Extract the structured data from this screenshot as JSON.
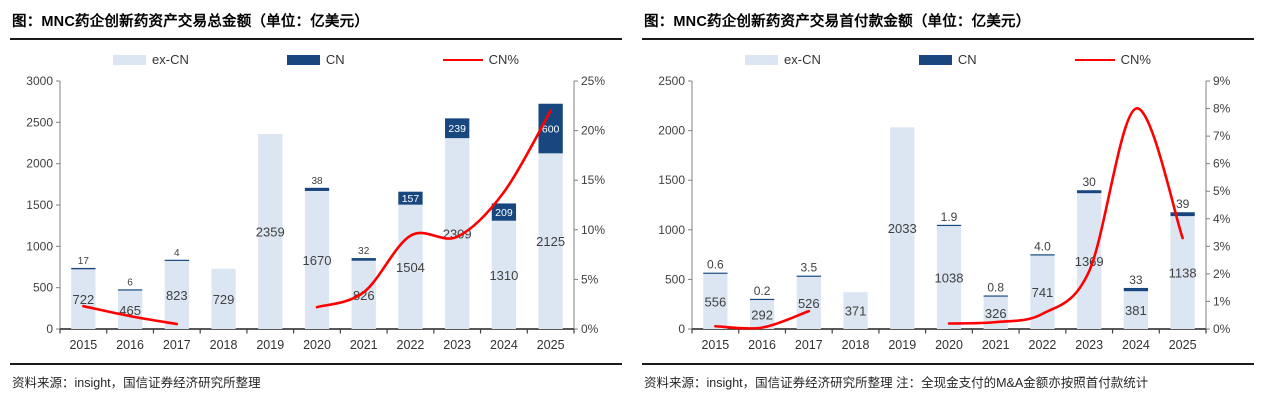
{
  "colors": {
    "ex_cn": "#dce6f2",
    "cn": "#17477e",
    "cn_pct": "#fe0000",
    "axis_line": "#808080",
    "x_axis_line": "#404040",
    "tick_label": "#404040",
    "bar_label": "#404040",
    "cn_label_inside": "#ffffff",
    "title_text": "#000000",
    "rule": "#1a1a1a",
    "background": "#ffffff"
  },
  "chart_data": [
    {
      "type": "bar",
      "subtype": "stacked-bar-with-line",
      "title": "图：MNC药企创新药资产交易总金额（单位：亿美元）",
      "source": "资料来源：insight，国信证券经济研究所整理",
      "categories": [
        "2015",
        "2016",
        "2017",
        "2018",
        "2019",
        "2020",
        "2021",
        "2022",
        "2023",
        "2024",
        "2025"
      ],
      "series": [
        {
          "name": "ex-CN",
          "type": "bar",
          "stack": true,
          "values": [
            722,
            465,
            823,
            729,
            2359,
            1670,
            826,
            1504,
            2309,
            1310,
            2125
          ],
          "labels": [
            "722",
            "465",
            "823",
            "729",
            "2359",
            "1670",
            "826",
            "1504",
            "2309",
            "1310",
            "2125"
          ]
        },
        {
          "name": "CN",
          "type": "bar",
          "stack": true,
          "values": [
            17,
            6,
            4,
            null,
            null,
            38,
            32,
            157,
            239,
            209,
            600
          ],
          "labels": [
            "17",
            "6",
            "4",
            null,
            null,
            "38",
            "32",
            "157",
            "239",
            "209",
            "600"
          ]
        },
        {
          "name": "CN%",
          "type": "line",
          "axis": "right",
          "values": [
            2.3,
            1.3,
            0.5,
            null,
            null,
            2.2,
            3.7,
            9.4,
            9.3,
            13.8,
            22.0
          ]
        }
      ],
      "left_axis": {
        "min": 0,
        "max": 3000,
        "step": 500
      },
      "right_axis": {
        "min": 0,
        "max": 25,
        "step": 5,
        "suffix": "%"
      },
      "legend_position": "top",
      "grid": false
    },
    {
      "type": "bar",
      "subtype": "stacked-bar-with-line",
      "title": "图：MNC药企创新药资产交易首付款金额（单位：亿美元）",
      "source": "资料来源：insight，国信证券经济研究所整理 注：全现金支付的M&A金额亦按照首付款统计",
      "categories": [
        "2015",
        "2016",
        "2017",
        "2018",
        "2019",
        "2020",
        "2021",
        "2022",
        "2023",
        "2024",
        "2025"
      ],
      "series": [
        {
          "name": "ex-CN",
          "type": "bar",
          "stack": true,
          "values": [
            556,
            292,
            526,
            371,
            2033,
            1038,
            326,
            741,
            1369,
            381,
            1138
          ],
          "labels": [
            "556",
            "292",
            "526",
            "371",
            "2033",
            "1038",
            "326",
            "741",
            "1369",
            "381",
            "1138"
          ]
        },
        {
          "name": "CN",
          "type": "bar",
          "stack": true,
          "values": [
            0.6,
            0.2,
            3.5,
            null,
            null,
            1.9,
            0.8,
            4.0,
            30,
            33,
            39
          ],
          "labels": [
            "0.6",
            "0.2",
            "3.5",
            null,
            null,
            "1.9",
            "0.8",
            "4.0",
            "30",
            "33",
            "39"
          ]
        },
        {
          "name": "CN%",
          "type": "line",
          "axis": "right",
          "values": [
            0.1,
            0.05,
            0.65,
            null,
            null,
            0.2,
            0.25,
            0.55,
            2.1,
            8.0,
            3.3
          ]
        }
      ],
      "left_axis": {
        "min": 0,
        "max": 2500,
        "step": 500
      },
      "right_axis": {
        "min": 0,
        "max": 9,
        "step": 1,
        "suffix": "%"
      },
      "legend_position": "top",
      "grid": false
    }
  ]
}
